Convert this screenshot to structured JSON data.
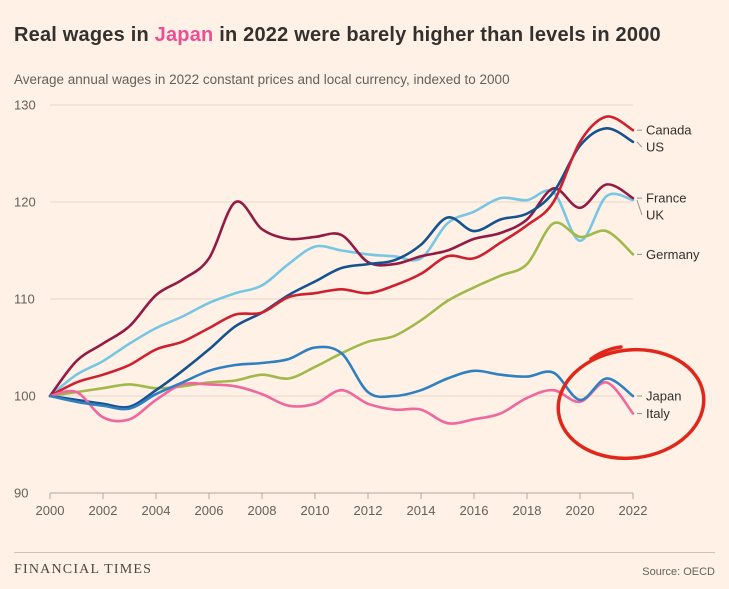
{
  "title": {
    "prefix": "Real wages in ",
    "highlight": "Japan",
    "suffix": " in 2022 were barely higher than levels in 2000"
  },
  "subtitle": "Average annual wages in 2022 constant prices and local currency, indexed to 2000",
  "footer": {
    "brand": "FINANCIAL TIMES",
    "source": "Source: OECD"
  },
  "colors": {
    "background": "#fff1e5",
    "title_text": "#33302e",
    "title_highlight": "#ed4e95",
    "muted_text": "#66605c",
    "gridline": "#e4d6c6",
    "axis": "#b3a99d",
    "label_tick": "#9a938b"
  },
  "chart_data": {
    "type": "line",
    "title": "Real wages in Japan in 2022 were barely higher than levels in 2000",
    "subtitle": "Average annual wages in 2022 constant prices and local currency, indexed to 2000",
    "x": [
      2000,
      2001,
      2002,
      2003,
      2004,
      2005,
      2006,
      2007,
      2008,
      2009,
      2010,
      2011,
      2012,
      2013,
      2014,
      2015,
      2016,
      2017,
      2018,
      2019,
      2020,
      2021,
      2022
    ],
    "x_tick_labels": [
      "2000",
      "2002",
      "2004",
      "2006",
      "2008",
      "2010",
      "2012",
      "2014",
      "2016",
      "2018",
      "2020",
      "2022"
    ],
    "ylim": [
      90,
      130
    ],
    "y_ticks": [
      90,
      100,
      110,
      120,
      130
    ],
    "grid": "horizontal",
    "legend_position": "right-direct-labels",
    "series": [
      {
        "name": "UK",
        "color": "#76c6e4",
        "values": [
          100,
          102.2,
          103.6,
          105.4,
          107.0,
          108.2,
          109.6,
          110.6,
          111.4,
          113.6,
          115.4,
          115.0,
          114.6,
          114.4,
          114.2,
          117.8,
          119.0,
          120.4,
          120.2,
          121.0,
          116.0,
          120.6,
          120.2
        ]
      },
      {
        "name": "Germany",
        "color": "#a0b94a",
        "values": [
          100,
          100.4,
          100.8,
          101.2,
          100.8,
          101.0,
          101.4,
          101.6,
          102.2,
          101.8,
          103.0,
          104.4,
          105.6,
          106.2,
          107.8,
          109.8,
          111.2,
          112.4,
          113.6,
          117.8,
          116.4,
          117.0,
          114.6
        ]
      },
      {
        "name": "France",
        "color": "#921b45",
        "values": [
          100,
          103.6,
          105.4,
          107.2,
          110.4,
          112.0,
          114.2,
          120.0,
          117.2,
          116.2,
          116.4,
          116.6,
          113.8,
          113.6,
          114.4,
          115.0,
          116.2,
          116.8,
          118.2,
          121.4,
          119.4,
          121.8,
          120.4
        ]
      },
      {
        "name": "US",
        "color": "#155290",
        "values": [
          100,
          99.6,
          99.2,
          98.9,
          100.6,
          102.6,
          104.8,
          107.2,
          108.6,
          110.4,
          111.8,
          113.2,
          113.6,
          114.0,
          115.6,
          118.4,
          117.0,
          118.2,
          118.8,
          121.0,
          125.8,
          127.6,
          126.2
        ]
      },
      {
        "name": "Canada",
        "color": "#cf2030",
        "values": [
          100,
          101.4,
          102.2,
          103.2,
          104.8,
          105.6,
          107.0,
          108.4,
          108.6,
          110.2,
          110.6,
          111.0,
          110.6,
          111.4,
          112.6,
          114.4,
          114.2,
          115.8,
          117.6,
          120.0,
          126.2,
          128.8,
          127.4
        ]
      },
      {
        "name": "Italy",
        "color": "#ef679f",
        "values": [
          100,
          100.4,
          97.8,
          97.6,
          99.6,
          101.2,
          101.2,
          101.0,
          100.2,
          99.0,
          99.2,
          100.6,
          99.2,
          98.6,
          98.6,
          97.2,
          97.6,
          98.2,
          99.8,
          100.6,
          99.4,
          101.4,
          98.2
        ]
      },
      {
        "name": "Japan",
        "color": "#2f80c0",
        "values": [
          100,
          99.4,
          99.0,
          98.7,
          100.2,
          101.4,
          102.6,
          103.2,
          103.4,
          103.8,
          105.0,
          104.4,
          100.4,
          100.0,
          100.6,
          101.8,
          102.6,
          102.2,
          102.0,
          102.4,
          99.6,
          101.8,
          100.0
        ]
      }
    ],
    "annotation": {
      "type": "hand-drawn-ellipse",
      "color": "#e0281a",
      "encircles": [
        "Japan",
        "Italy"
      ]
    }
  }
}
